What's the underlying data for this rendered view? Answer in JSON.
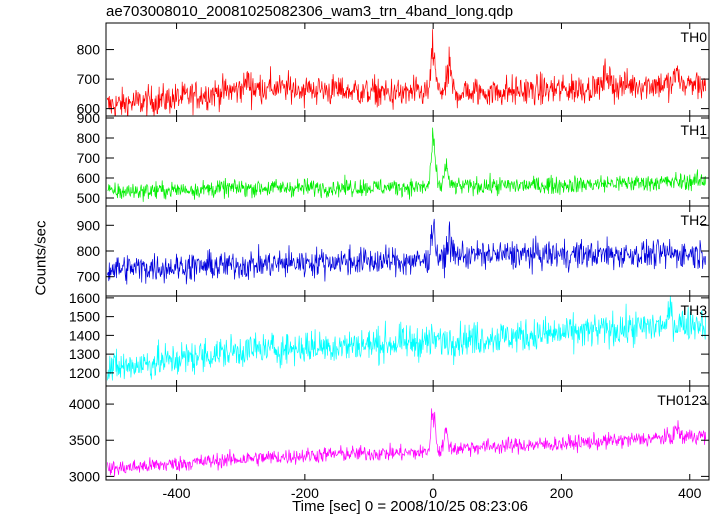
{
  "chart_data": {
    "type": "line",
    "title": "ae703008010_20081025082306_wam3_trn_4band_long.qdp",
    "xlabel": "Time [sec] 0 = 2008/10/25 08:23:06",
    "ylabel": "Counts/sec",
    "xlim": [
      -510,
      430
    ],
    "x_ticks": [
      -400,
      -200,
      0,
      200,
      400
    ],
    "grid": false,
    "panels": [
      {
        "name": "TH0",
        "color": "#ff0000",
        "ylim": [
          575,
          890
        ],
        "y_ticks": [
          600,
          700,
          800
        ],
        "trend": [
          [
            -510,
            610
          ],
          [
            -400,
            635
          ],
          [
            -300,
            665
          ],
          [
            -250,
            670
          ],
          [
            -150,
            662
          ],
          [
            -50,
            650
          ],
          [
            -10,
            655
          ],
          [
            60,
            655
          ],
          [
            200,
            665
          ],
          [
            300,
            680
          ],
          [
            430,
            685
          ]
        ],
        "noise": 26,
        "peaks": [
          [
            -290,
            45
          ],
          [
            0,
            190
          ],
          [
            25,
            110
          ],
          [
            270,
            70
          ],
          [
            380,
            55
          ]
        ]
      },
      {
        "name": "TH1",
        "color": "#00ee00",
        "ylim": [
          460,
          910
        ],
        "y_ticks": [
          500,
          600,
          700,
          800,
          900
        ],
        "trend": [
          [
            -510,
            530
          ],
          [
            -300,
            550
          ],
          [
            -100,
            553
          ],
          [
            -10,
            555
          ],
          [
            60,
            560
          ],
          [
            200,
            565
          ],
          [
            430,
            585
          ]
        ],
        "noise": 22,
        "peaks": [
          [
            0,
            330
          ],
          [
            20,
            140
          ]
        ]
      },
      {
        "name": "TH2",
        "color": "#0000dd",
        "ylim": [
          625,
          975
        ],
        "y_ticks": [
          700,
          800,
          900
        ],
        "trend": [
          [
            -510,
            730
          ],
          [
            -300,
            745
          ],
          [
            -150,
            760
          ],
          [
            -10,
            760
          ],
          [
            40,
            785
          ],
          [
            200,
            785
          ],
          [
            430,
            790
          ]
        ],
        "noise": 28,
        "peaks": [
          [
            0,
            180
          ],
          [
            25,
            90
          ]
        ]
      },
      {
        "name": "TH3",
        "color": "#00ffff",
        "ylim": [
          1130,
          1610
        ],
        "y_ticks": [
          1200,
          1300,
          1400,
          1500,
          1600
        ],
        "trend": [
          [
            -510,
            1220
          ],
          [
            -300,
            1320
          ],
          [
            -100,
            1350
          ],
          [
            0,
            1370
          ],
          [
            200,
            1410
          ],
          [
            430,
            1470
          ]
        ],
        "noise": 45,
        "peaks": [
          [
            370,
            100
          ]
        ]
      },
      {
        "name": "TH0123",
        "color": "#ff00ff",
        "ylim": [
          2950,
          4250
        ],
        "y_ticks": [
          3000,
          3500,
          4000
        ],
        "trend": [
          [
            -510,
            3100
          ],
          [
            -300,
            3240
          ],
          [
            -150,
            3310
          ],
          [
            -10,
            3330
          ],
          [
            50,
            3400
          ],
          [
            200,
            3450
          ],
          [
            430,
            3570
          ]
        ],
        "noise": 55,
        "peaks": [
          [
            0,
            780
          ],
          [
            20,
            320
          ],
          [
            380,
            170
          ]
        ]
      }
    ]
  }
}
